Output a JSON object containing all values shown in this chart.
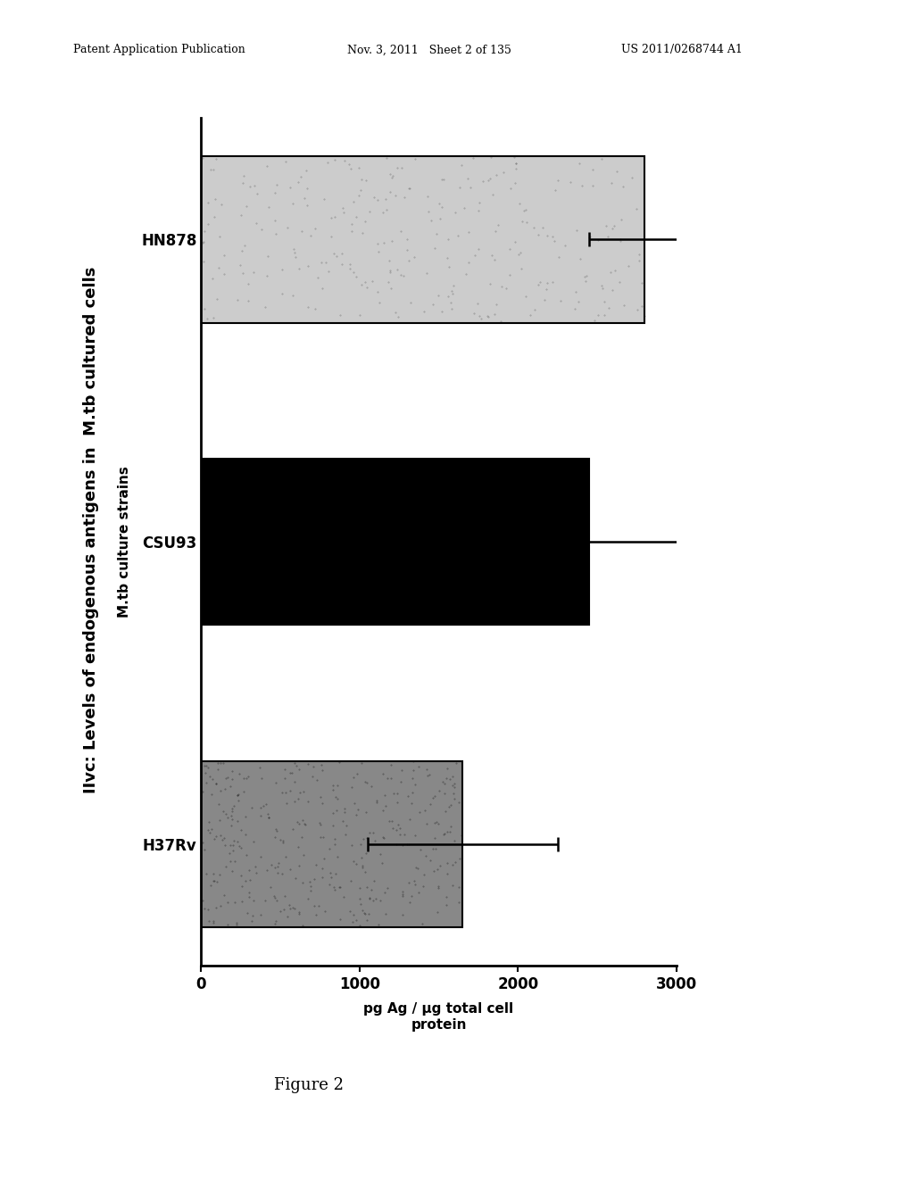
{
  "header_left": "Patent Application Publication",
  "header_mid": "Nov. 3, 2011   Sheet 2 of 135",
  "header_right": "US 2011/0268744 A1",
  "figure_caption": "Figure 2",
  "figure_label": "IIvc:",
  "title": "Levels of endogenous antigens in  M.tb cultured cells",
  "xlabel": "pg Ag / µg total cell\nprotein",
  "ylabel": "M.tb culture strains",
  "categories": [
    "H37Rv",
    "CSU93",
    "HN878"
  ],
  "values": [
    1650,
    2450,
    2800
  ],
  "errors": [
    600,
    700,
    350
  ],
  "bar_colors": [
    "#888888",
    "#000000",
    "#bbbbbb"
  ],
  "bar_hatches": [
    "light_dots",
    "none",
    "light_dots_lighter"
  ],
  "xlim": [
    0,
    3000
  ],
  "xticks": [
    0,
    1000,
    2000,
    3000
  ],
  "background_color": "#ffffff",
  "bar_width": 0.55
}
